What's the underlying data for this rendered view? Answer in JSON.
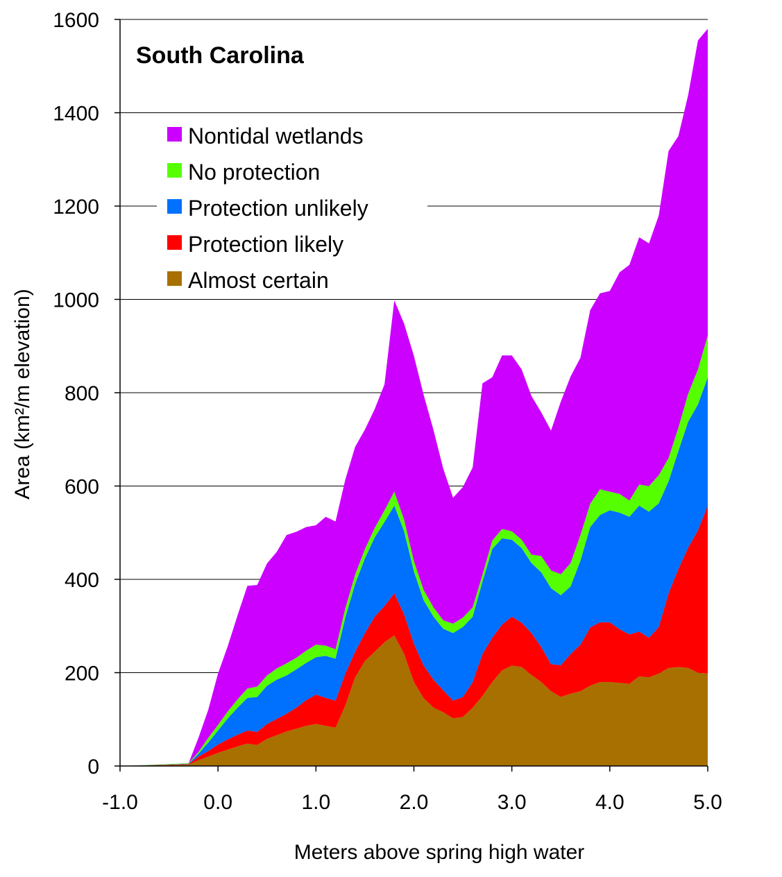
{
  "chart_data": {
    "type": "area",
    "stacked": true,
    "title": "South Carolina",
    "xlabel": "Meters above spring high water",
    "ylabel": "Area (km²/m elevation)",
    "xlim": [
      -1.0,
      5.0
    ],
    "ylim": [
      0,
      1600
    ],
    "xticks": [
      "-1.0",
      "0.0",
      "1.0",
      "2.0",
      "3.0",
      "4.0",
      "5.0"
    ],
    "yticks": [
      "0",
      "200",
      "400",
      "600",
      "800",
      "1000",
      "1200",
      "1400",
      "1600"
    ],
    "grid": "horizontal",
    "legend_position": "top-left",
    "x": [
      -1.0,
      -0.3,
      -0.2,
      -0.1,
      0.0,
      0.1,
      0.2,
      0.3,
      0.4,
      0.5,
      0.6,
      0.7,
      0.8,
      0.9,
      1.0,
      1.1,
      1.2,
      1.3,
      1.4,
      1.5,
      1.6,
      1.7,
      1.8,
      1.9,
      2.0,
      2.1,
      2.2,
      2.3,
      2.4,
      2.5,
      2.6,
      2.7,
      2.8,
      2.9,
      3.0,
      3.1,
      3.2,
      3.3,
      3.4,
      3.5,
      3.6,
      3.7,
      3.8,
      3.9,
      4.0,
      4.1,
      4.2,
      4.3,
      4.4,
      4.5,
      4.6,
      4.7,
      4.8,
      4.9,
      5.0
    ],
    "series": [
      {
        "name": "Almost certain",
        "color": "#A87000",
        "values": [
          0,
          3,
          12,
          20,
          28,
          35,
          42,
          48,
          45,
          58,
          66,
          74,
          80,
          86,
          90,
          86,
          82,
          130,
          190,
          225,
          245,
          265,
          280,
          240,
          180,
          145,
          125,
          115,
          102,
          105,
          125,
          150,
          180,
          205,
          215,
          212,
          195,
          180,
          160,
          148,
          155,
          160,
          172,
          180,
          180,
          178,
          176,
          192,
          190,
          198,
          210,
          212,
          210,
          200,
          198
        ]
      },
      {
        "name": "Protection likely",
        "color": "#FF0000",
        "values": [
          0,
          1,
          8,
          12,
          18,
          22,
          25,
          28,
          28,
          32,
          35,
          38,
          45,
          55,
          63,
          60,
          58,
          68,
          55,
          60,
          75,
          78,
          90,
          85,
          82,
          70,
          60,
          47,
          38,
          43,
          55,
          90,
          95,
          98,
          105,
          95,
          90,
          75,
          58,
          68,
          85,
          100,
          125,
          128,
          128,
          115,
          106,
          96,
          85,
          100,
          160,
          210,
          258,
          305,
          360
        ]
      },
      {
        "name": "Protection unlikely",
        "color": "#0070FF",
        "values": [
          0,
          1,
          6,
          18,
          30,
          45,
          58,
          70,
          75,
          82,
          84,
          82,
          82,
          80,
          80,
          90,
          90,
          120,
          145,
          160,
          170,
          180,
          188,
          178,
          155,
          140,
          135,
          132,
          145,
          150,
          140,
          155,
          190,
          185,
          165,
          160,
          150,
          160,
          163,
          150,
          145,
          180,
          215,
          230,
          240,
          250,
          252,
          270,
          270,
          265,
          240,
          253,
          270,
          270,
          275
        ]
      },
      {
        "name": "No protection",
        "color": "#55FF00",
        "values": [
          0,
          1,
          4,
          10,
          12,
          15,
          18,
          20,
          22,
          22,
          24,
          26,
          25,
          26,
          27,
          22,
          20,
          20,
          20,
          20,
          20,
          25,
          30,
          25,
          22,
          22,
          20,
          18,
          20,
          20,
          20,
          15,
          18,
          20,
          18,
          18,
          18,
          35,
          38,
          45,
          50,
          55,
          50,
          55,
          40,
          40,
          35,
          45,
          55,
          60,
          50,
          50,
          60,
          75,
          90
        ]
      },
      {
        "name": "Nontidal wetlands",
        "color": "#CC00FF",
        "values": [
          0,
          0,
          30,
          60,
          110,
          140,
          180,
          220,
          218,
          240,
          250,
          275,
          270,
          265,
          256,
          276,
          274,
          276,
          274,
          256,
          255,
          270,
          410,
          420,
          440,
          418,
          380,
          325,
          270,
          280,
          300,
          410,
          350,
          372,
          377,
          365,
          340,
          308,
          300,
          370,
          400,
          380,
          415,
          420,
          430,
          475,
          505,
          530,
          520,
          557,
          658,
          625,
          640,
          705,
          657
        ]
      }
    ]
  }
}
